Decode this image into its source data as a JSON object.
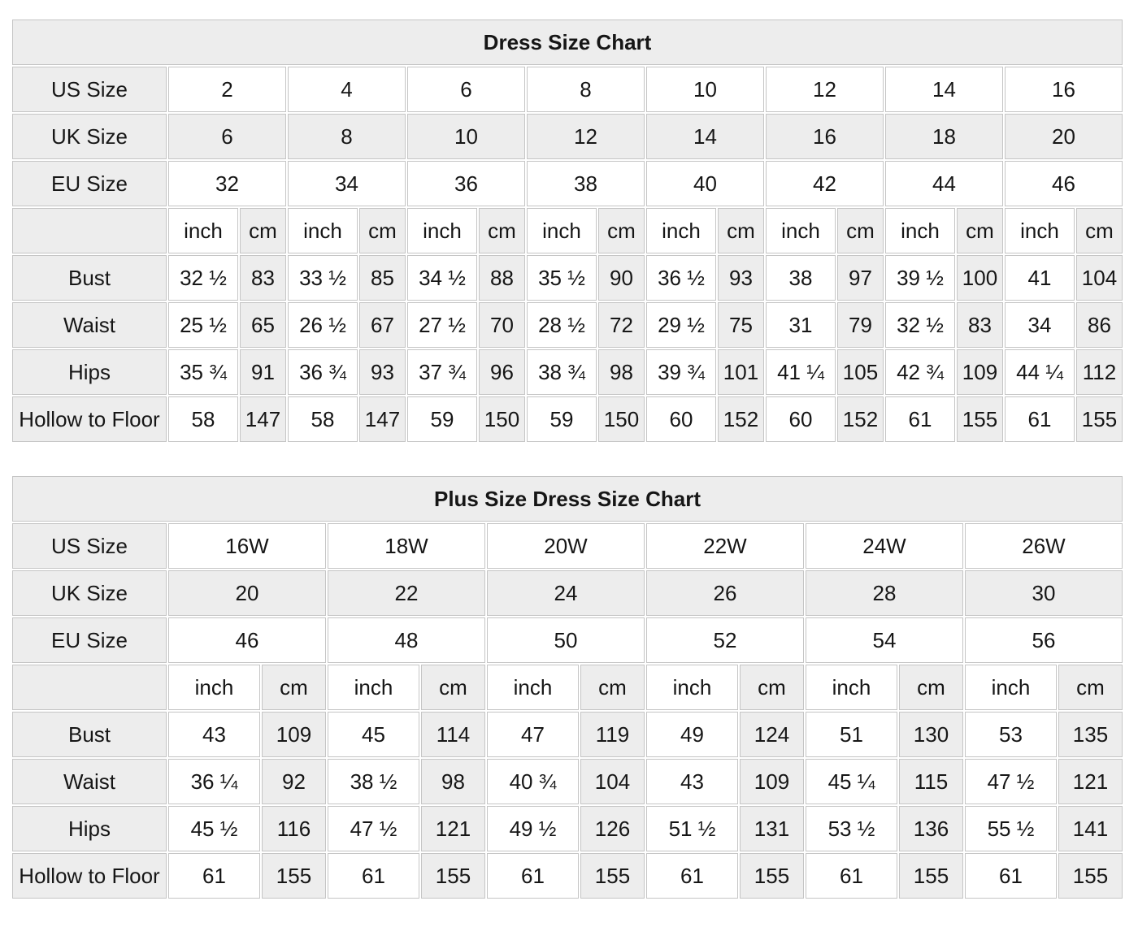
{
  "colors": {
    "cell_shaded": "#ededed",
    "cell_white": "#ffffff",
    "border": "#c5c5c5",
    "text": "#161616"
  },
  "tables": [
    {
      "name": "dress-size-chart",
      "title": "Dress Size Chart",
      "unit_labels": [
        "inch",
        "cm"
      ],
      "size_rows": [
        {
          "label": "US Size",
          "shaded": false,
          "values": [
            "2",
            "4",
            "6",
            "8",
            "10",
            "12",
            "14",
            "16"
          ]
        },
        {
          "label": "UK Size",
          "shaded": true,
          "values": [
            "6",
            "8",
            "10",
            "12",
            "14",
            "16",
            "18",
            "20"
          ]
        },
        {
          "label": "EU Size",
          "shaded": false,
          "values": [
            "32",
            "34",
            "36",
            "38",
            "40",
            "42",
            "44",
            "46"
          ]
        }
      ],
      "measurement_rows": [
        {
          "label": "Bust",
          "inch": [
            "32 ½",
            "33 ½",
            "34 ½",
            "35 ½",
            "36 ½",
            "38",
            "39 ½",
            "41"
          ],
          "cm": [
            "83",
            "85",
            "88",
            "90",
            "93",
            "97",
            "100",
            "104"
          ]
        },
        {
          "label": "Waist",
          "inch": [
            "25 ½",
            "26 ½",
            "27 ½",
            "28 ½",
            "29 ½",
            "31",
            "32 ½",
            "34"
          ],
          "cm": [
            "65",
            "67",
            "70",
            "72",
            "75",
            "79",
            "83",
            "86"
          ]
        },
        {
          "label": "Hips",
          "inch": [
            "35 ¾",
            "36 ¾",
            "37 ¾",
            "38 ¾",
            "39 ¾",
            "41 ¼",
            "42 ¾",
            "44 ¼"
          ],
          "cm": [
            "91",
            "93",
            "96",
            "98",
            "101",
            "105",
            "109",
            "112"
          ]
        },
        {
          "label": "Hollow to Floor",
          "inch": [
            "58",
            "58",
            "59",
            "59",
            "60",
            "60",
            "61",
            "61"
          ],
          "cm": [
            "147",
            "147",
            "150",
            "150",
            "152",
            "152",
            "155",
            "155"
          ]
        }
      ]
    },
    {
      "name": "plus-size-dress-size-chart",
      "title": "Plus Size Dress Size Chart",
      "unit_labels": [
        "inch",
        "cm"
      ],
      "size_rows": [
        {
          "label": "US Size",
          "shaded": false,
          "values": [
            "16W",
            "18W",
            "20W",
            "22W",
            "24W",
            "26W"
          ]
        },
        {
          "label": "UK Size",
          "shaded": true,
          "values": [
            "20",
            "22",
            "24",
            "26",
            "28",
            "30"
          ]
        },
        {
          "label": "EU Size",
          "shaded": false,
          "values": [
            "46",
            "48",
            "50",
            "52",
            "54",
            "56"
          ]
        }
      ],
      "measurement_rows": [
        {
          "label": "Bust",
          "inch": [
            "43",
            "45",
            "47",
            "49",
            "51",
            "53"
          ],
          "cm": [
            "109",
            "114",
            "119",
            "124",
            "130",
            "135"
          ]
        },
        {
          "label": "Waist",
          "inch": [
            "36 ¼",
            "38 ½",
            "40 ¾",
            "43",
            "45 ¼",
            "47 ½"
          ],
          "cm": [
            "92",
            "98",
            "104",
            "109",
            "115",
            "121"
          ]
        },
        {
          "label": "Hips",
          "inch": [
            "45 ½",
            "47 ½",
            "49 ½",
            "51 ½",
            "53 ½",
            "55 ½"
          ],
          "cm": [
            "116",
            "121",
            "126",
            "131",
            "136",
            "141"
          ]
        },
        {
          "label": "Hollow to Floor",
          "inch": [
            "61",
            "61",
            "61",
            "61",
            "61",
            "61"
          ],
          "cm": [
            "155",
            "155",
            "155",
            "155",
            "155",
            "155"
          ]
        }
      ]
    }
  ]
}
